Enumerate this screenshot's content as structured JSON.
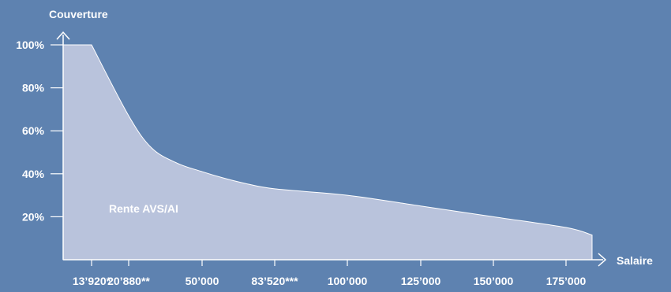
{
  "chart_data": {
    "type": "area",
    "ylabel": "Couverture",
    "xlabel": "Salaire",
    "y_ticks": [
      "20%",
      "40%",
      "60%",
      "80%",
      "100%"
    ],
    "y_tick_values": [
      20,
      40,
      60,
      80,
      100
    ],
    "ylim": [
      0,
      100
    ],
    "x_tick_labels": [
      "13’920*",
      "20’880**",
      "50’000",
      "83’520***",
      "100’000",
      "125’000",
      "150’000",
      "175’000"
    ],
    "x_tick_values": [
      13920,
      20880,
      50000,
      83520,
      100000,
      125000,
      150000,
      175000
    ],
    "xlim": [
      0,
      185000
    ],
    "series": [
      {
        "name": "Rente AVS/AI",
        "x": [
          0,
          13920,
          20880,
          30000,
          40000,
          50000,
          60000,
          70000,
          83520,
          100000,
          125000,
          150000,
          175000,
          185000
        ],
        "y": [
          100,
          100,
          67,
          52,
          45,
          41,
          38,
          35.5,
          33,
          30,
          25,
          20,
          15,
          11.5
        ]
      }
    ],
    "area_label": "Rente AVS/AI",
    "colors": {
      "background": "#5e82b0",
      "area": "#b9c3dc",
      "text": "#ffffff"
    }
  }
}
